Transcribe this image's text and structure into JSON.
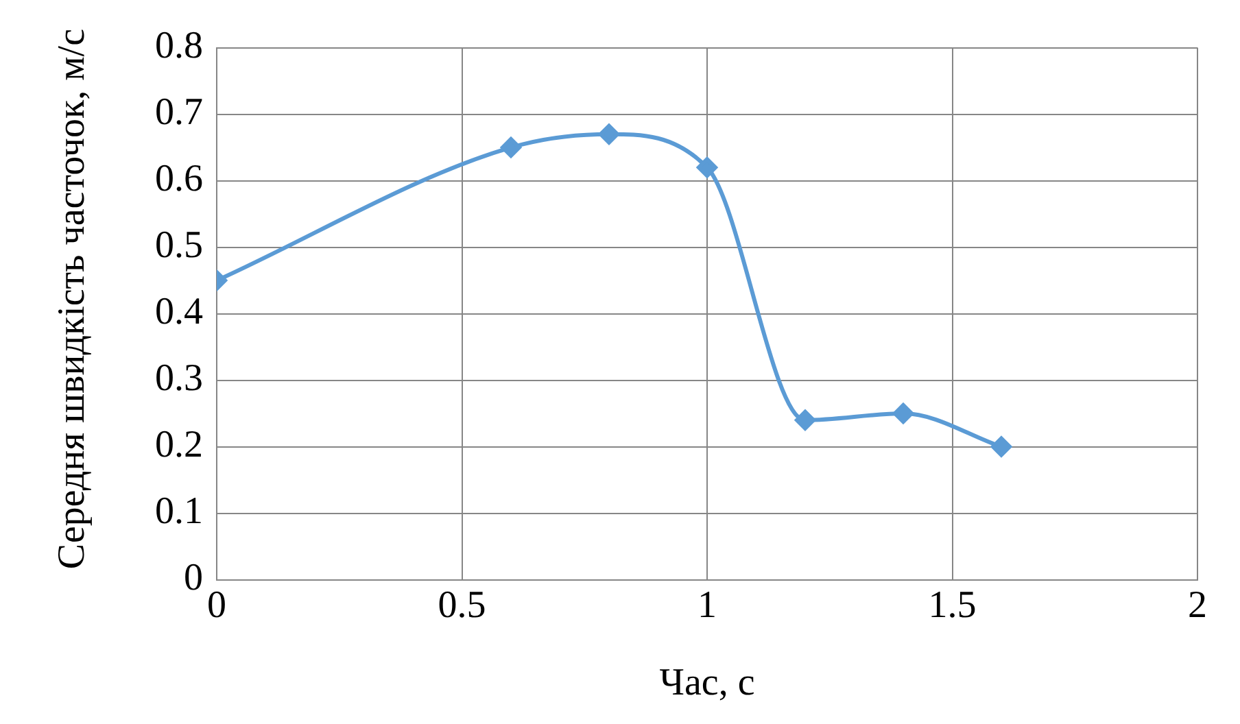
{
  "chart_data": {
    "type": "line",
    "xlabel": "Час, с",
    "ylabel": "Середня швидкість часточок, м/с",
    "x": [
      0,
      0.6,
      0.8,
      1.0,
      1.2,
      1.4,
      1.6
    ],
    "series": [
      {
        "color": "#5b9bd5",
        "values": [
          0.45,
          0.65,
          0.67,
          0.62,
          0.24,
          0.25,
          0.2
        ]
      }
    ],
    "xlim": [
      0,
      2
    ],
    "xticks": [
      0,
      0.5,
      1,
      1.5,
      2
    ],
    "ylim": [
      0,
      0.8
    ],
    "yticks": [
      0,
      0.1,
      0.2,
      0.3,
      0.4,
      0.5,
      0.6,
      0.7,
      0.8
    ],
    "grid": true,
    "legend": false,
    "marker": "diamond",
    "line_style": "solid"
  }
}
